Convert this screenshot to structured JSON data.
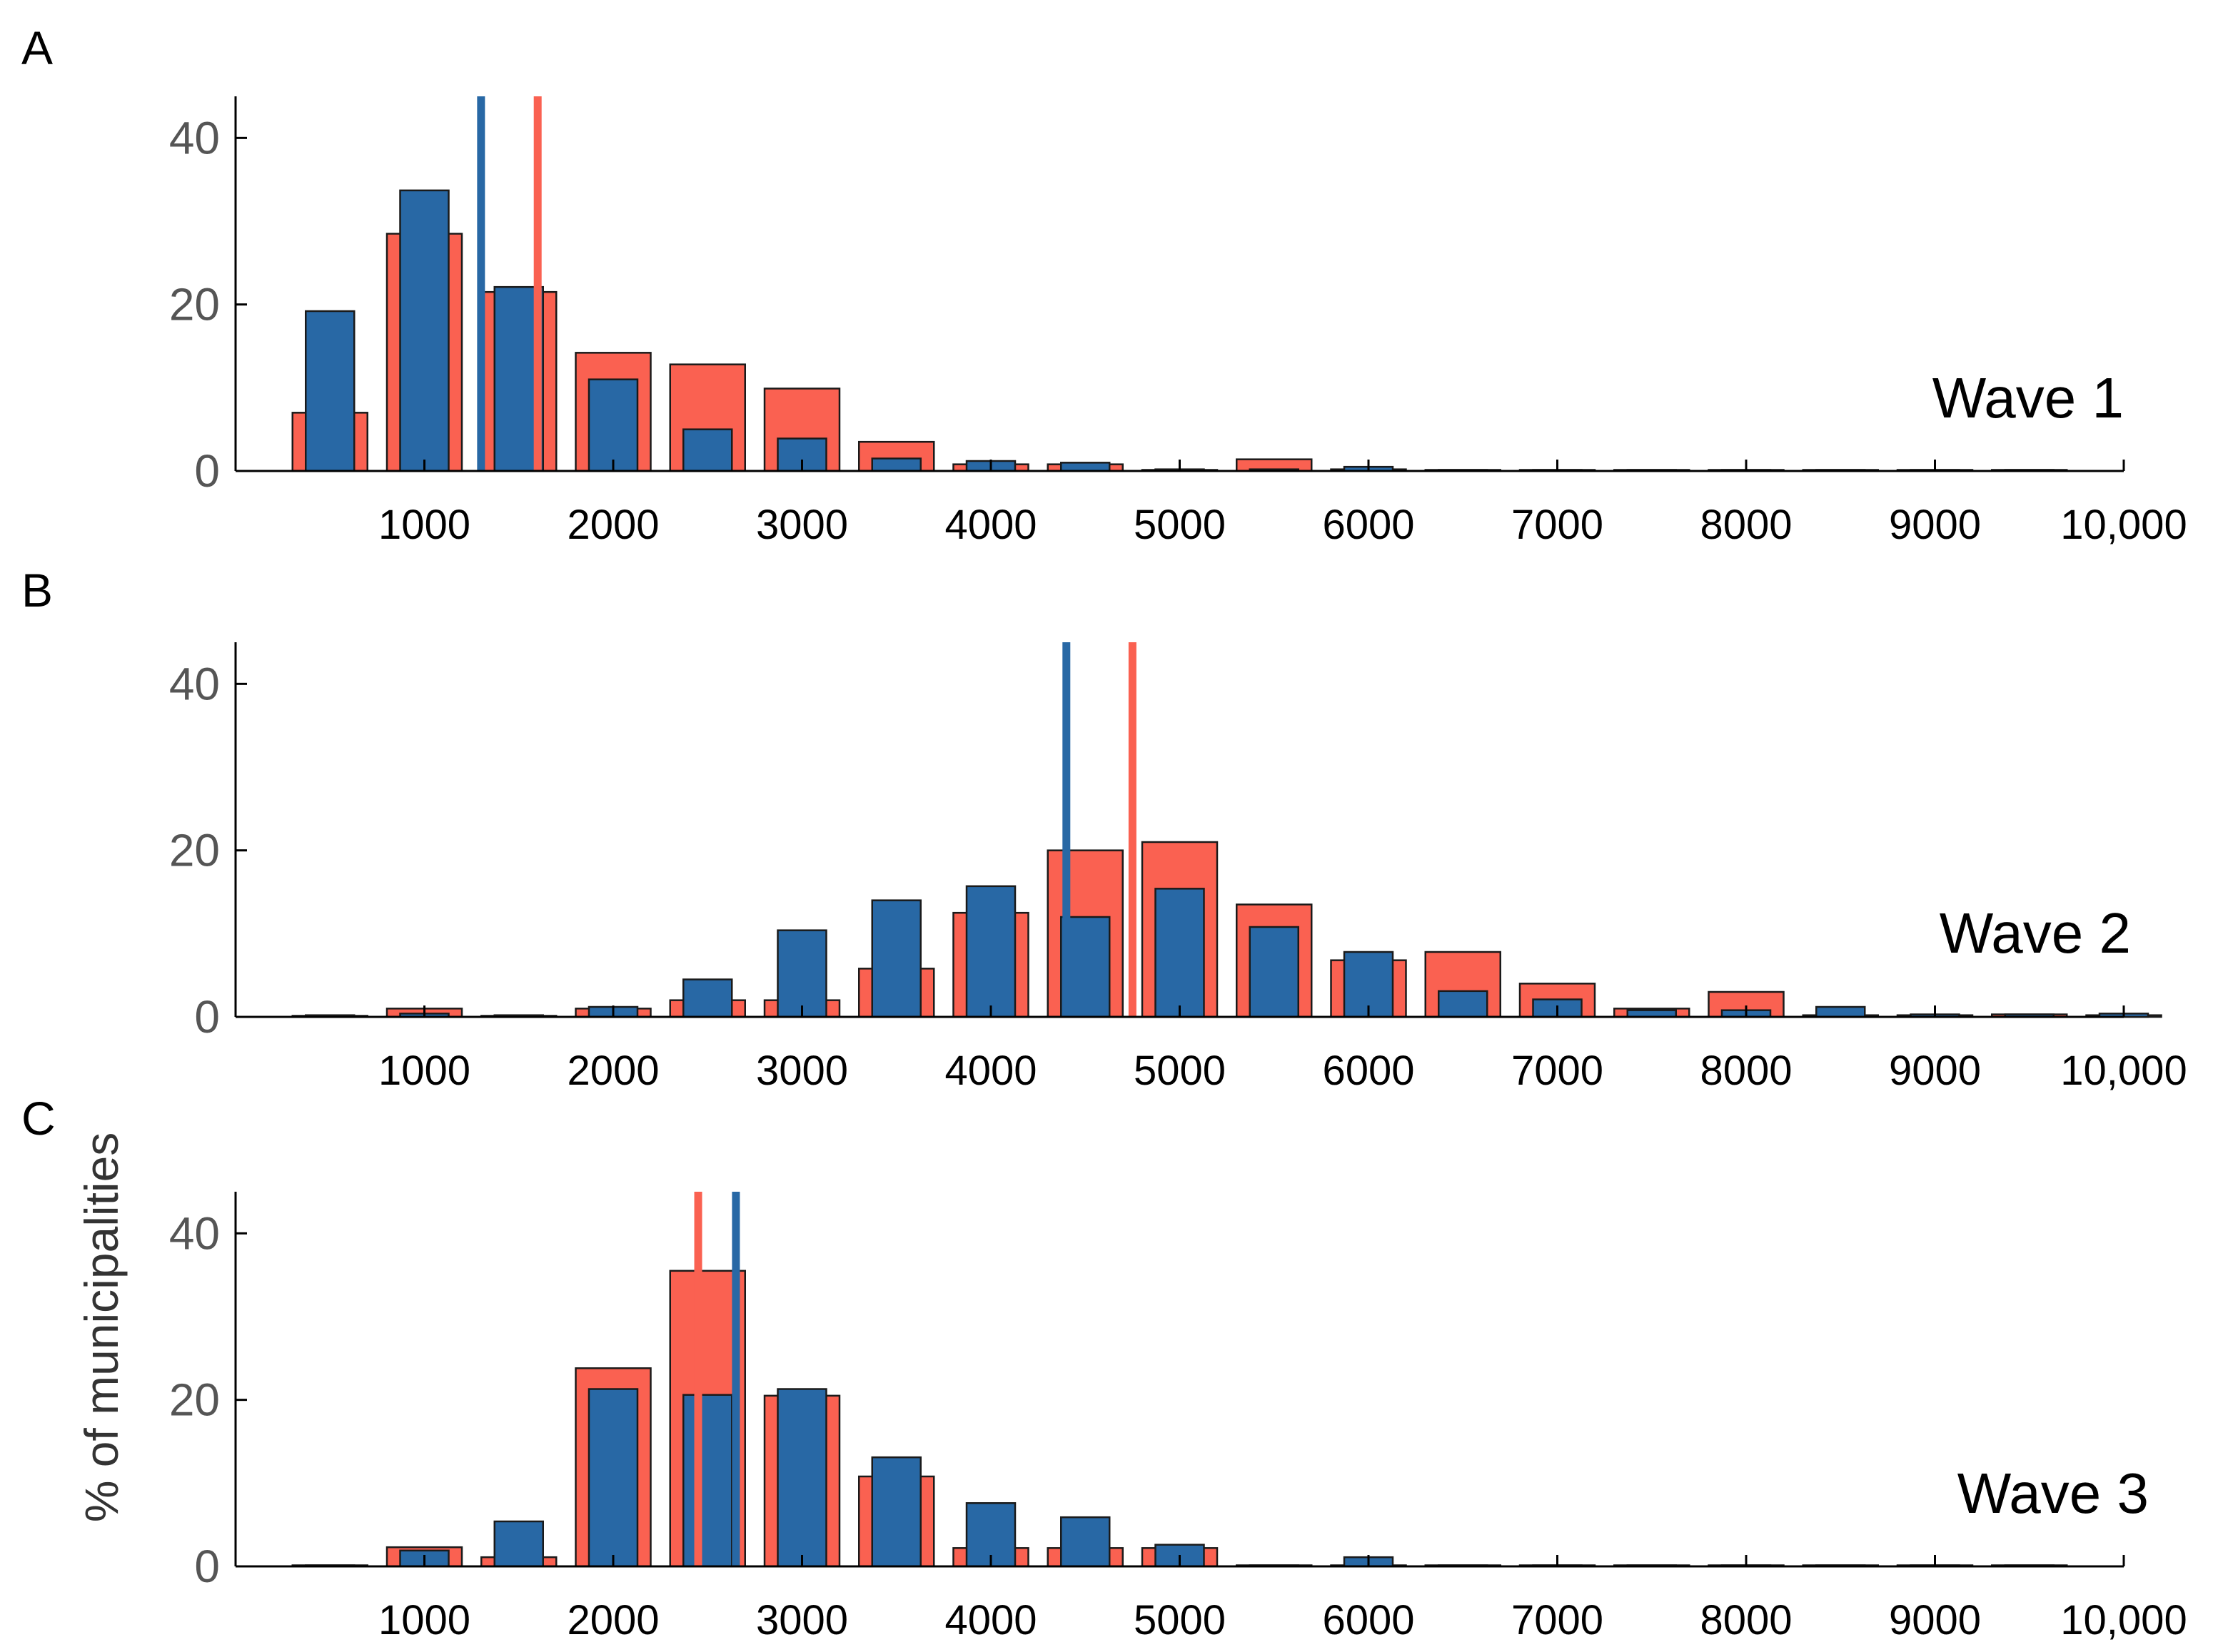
{
  "figure": {
    "ylabel": "% of municipalities"
  },
  "colors": {
    "red": "#FA6151",
    "blue": "#2868A5",
    "outline": "#1a1a1a",
    "axis": "#000000"
  },
  "chart_data": [
    {
      "type": "bar",
      "panel": "A",
      "title": "Wave 1",
      "xlim": [
        0,
        10000
      ],
      "ylim": [
        0,
        45
      ],
      "xticks": [
        1000,
        2000,
        3000,
        4000,
        5000,
        6000,
        7000,
        8000,
        9000,
        10000
      ],
      "xtick_labels": [
        "1000",
        "2000",
        "3000",
        "4000",
        "5000",
        "6000",
        "7000",
        "8000",
        "9000",
        "10,000"
      ],
      "yticks": [
        0,
        20,
        40
      ],
      "ytick_labels": [
        "0",
        "20",
        "40"
      ],
      "bin_centers": [
        500,
        1000,
        1500,
        2000,
        2500,
        3000,
        3500,
        4000,
        4500,
        5000,
        5500,
        6000,
        6500,
        7000,
        7500,
        8000,
        8500,
        9000,
        9500
      ],
      "series": [
        {
          "name": "red",
          "values": [
            7,
            28.5,
            21.5,
            14.2,
            12.8,
            9.9,
            3.5,
            0.8,
            0.8,
            0.1,
            1.4,
            0.2,
            0,
            0,
            0,
            0,
            0,
            0,
            0
          ]
        },
        {
          "name": "blue",
          "values": [
            19.2,
            33.7,
            22.1,
            11,
            5,
            3.9,
            1.5,
            1.2,
            1,
            0.2,
            0.2,
            0.5,
            0,
            0,
            0,
            0,
            0,
            0,
            0
          ]
        }
      ],
      "mean_lines": {
        "red": 1600,
        "blue": 1300
      }
    },
    {
      "type": "bar",
      "panel": "B",
      "title": "Wave 2",
      "xlim": [
        0,
        10000
      ],
      "ylim": [
        0,
        45
      ],
      "xticks": [
        1000,
        2000,
        3000,
        4000,
        5000,
        6000,
        7000,
        8000,
        9000,
        10000
      ],
      "xtick_labels": [
        "1000",
        "2000",
        "3000",
        "4000",
        "5000",
        "6000",
        "7000",
        "8000",
        "9000",
        "10,000"
      ],
      "yticks": [
        0,
        20,
        40
      ],
      "ytick_labels": [
        "0",
        "20",
        "40"
      ],
      "bin_centers": [
        500,
        1000,
        1500,
        2000,
        2500,
        3000,
        3500,
        4000,
        4500,
        5000,
        5500,
        6000,
        6500,
        7000,
        7500,
        8000,
        8500,
        9000,
        9500,
        10000
      ],
      "series": [
        {
          "name": "red",
          "values": [
            0,
            1,
            0,
            1,
            2,
            2,
            5.8,
            12.5,
            20,
            21,
            13.5,
            6.8,
            7.8,
            4,
            1,
            3,
            0.2,
            0.2,
            0.3,
            0.2
          ]
        },
        {
          "name": "blue",
          "values": [
            0.2,
            0.4,
            0.2,
            1.2,
            4.5,
            10.4,
            14,
            15.7,
            12,
            15.4,
            10.8,
            7.8,
            3.1,
            2.1,
            0.8,
            0.8,
            1.2,
            0.3,
            0.3,
            0.4
          ]
        }
      ],
      "mean_lines": {
        "red": 4750,
        "blue": 4400
      }
    },
    {
      "type": "bar",
      "panel": "C",
      "title": "Wave 3",
      "xlim": [
        0,
        10000
      ],
      "ylim": [
        0,
        45
      ],
      "xticks": [
        1000,
        2000,
        3000,
        4000,
        5000,
        6000,
        7000,
        8000,
        9000,
        10000
      ],
      "xtick_labels": [
        "1000",
        "2000",
        "3000",
        "4000",
        "5000",
        "6000",
        "7000",
        "8000",
        "9000",
        "10,000"
      ],
      "yticks": [
        0,
        20,
        40
      ],
      "ytick_labels": [
        "0",
        "20",
        "40"
      ],
      "bin_centers": [
        500,
        1000,
        1500,
        2000,
        2500,
        3000,
        3500,
        4000,
        4500,
        5000,
        5500,
        6000,
        6500,
        7000,
        7500,
        8000,
        8500,
        9000,
        9500
      ],
      "series": [
        {
          "name": "red",
          "values": [
            0,
            2.3,
            1.1,
            23.8,
            35.5,
            20.5,
            10.8,
            2.2,
            2.2,
            2.2,
            0,
            0,
            0,
            0,
            0,
            0,
            0,
            0,
            0
          ]
        },
        {
          "name": "blue",
          "values": [
            0,
            1.9,
            5.4,
            21.3,
            20.6,
            21.3,
            13.1,
            7.6,
            5.9,
            2.6,
            0,
            1.1,
            0,
            0,
            0,
            0,
            0,
            0,
            0
          ]
        }
      ],
      "mean_lines": {
        "red": 2450,
        "blue": 2650
      }
    }
  ]
}
